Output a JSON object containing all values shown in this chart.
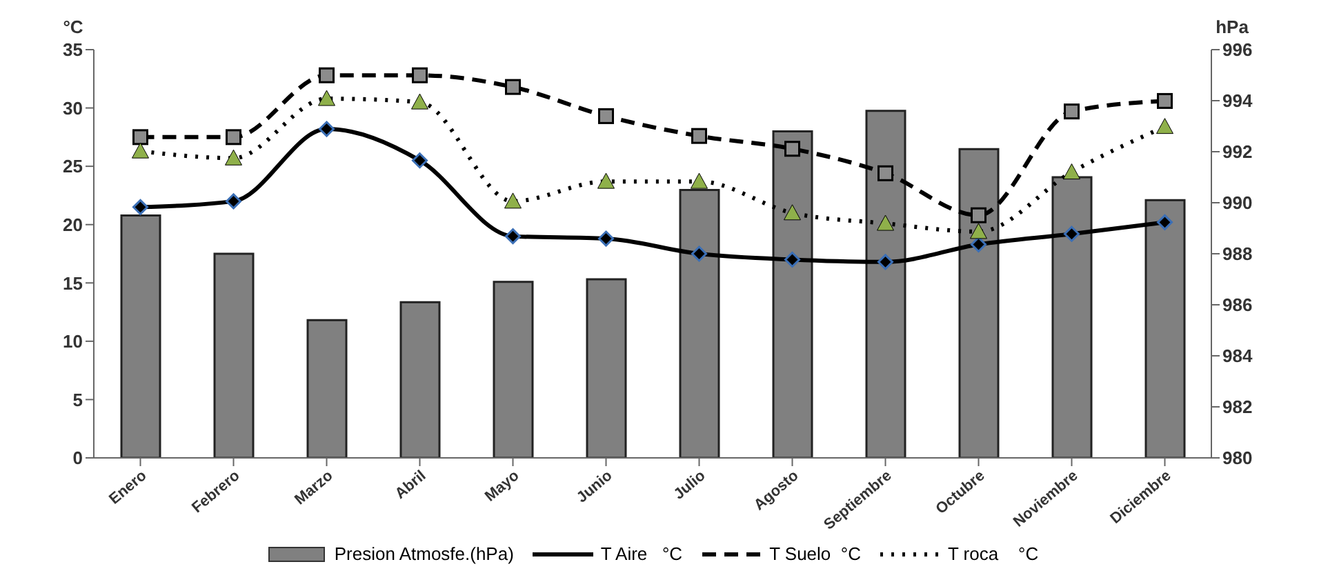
{
  "chart_data": {
    "type": "bar",
    "ylabel": "°C",
    "y2label": "hPa",
    "categories": [
      "Enero",
      "Febrero",
      "Marzo",
      "Abril",
      "Mayo",
      "Junio",
      "Julio",
      "Agosto",
      "Septiembre",
      "Octubre",
      "Noviembre",
      "Diciembre"
    ],
    "series": [
      {
        "name": "Presion Atmosfe.(hPa)",
        "axis": "y2",
        "color": "#808080",
        "values": [
          989.5,
          988.0,
          985.4,
          986.1,
          986.9,
          987.0,
          990.5,
          992.8,
          993.6,
          992.1,
          991.0,
          990.1
        ]
      },
      {
        "name": "T Aire   °C",
        "type": "line",
        "color": "#000000",
        "marker": "diamond",
        "line_style": "solid",
        "values": [
          21.5,
          22.0,
          28.2,
          25.5,
          19.0,
          18.8,
          17.5,
          17.0,
          16.8,
          18.3,
          19.2,
          20.2
        ]
      },
      {
        "name": "T Suelo  °C",
        "type": "line",
        "color": "#000000",
        "marker": "square",
        "line_style": "dashed",
        "values": [
          27.5,
          27.5,
          32.8,
          32.8,
          31.8,
          29.3,
          27.6,
          26.5,
          24.4,
          20.8,
          29.7,
          30.6
        ]
      },
      {
        "name": "T roca    °C",
        "type": "line",
        "color": "#000000",
        "marker": "triangle",
        "line_style": "dotted",
        "values": [
          26.3,
          25.7,
          30.8,
          30.5,
          22.0,
          23.7,
          23.7,
          21.0,
          20.1,
          19.4,
          24.5,
          28.4
        ]
      }
    ],
    "ylim": [
      0,
      35
    ],
    "yticks": [
      0,
      5,
      10,
      15,
      20,
      25,
      30,
      35
    ],
    "y2lim": [
      980,
      996
    ],
    "y2ticks": [
      980,
      982,
      984,
      986,
      988,
      990,
      992,
      994,
      996
    ],
    "grid": false,
    "legend": "bottom"
  }
}
